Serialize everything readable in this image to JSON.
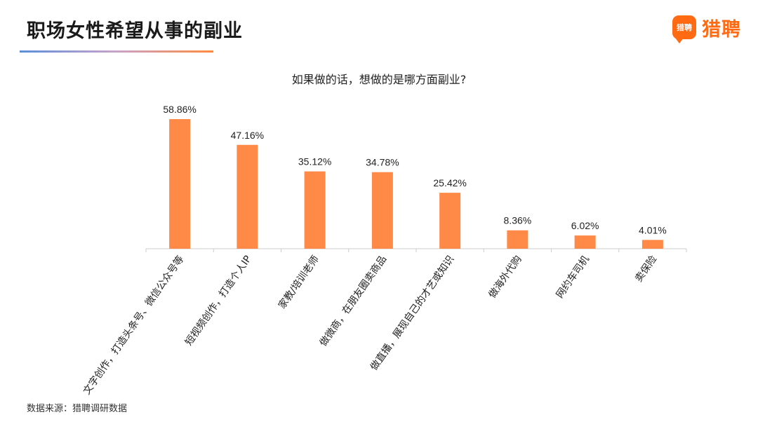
{
  "header": {
    "title": "职场女性希望从事的副业"
  },
  "logo": {
    "icon_text": "猎聘",
    "text": "猎聘",
    "color": "#ff6a13"
  },
  "footer": {
    "source": "数据来源：猎聘调研数据"
  },
  "colors": {
    "bar": "#ff8a47",
    "axis": "#cccccc"
  },
  "chart_data": {
    "type": "bar",
    "title": "如果做的话，想做的是哪方面副业?",
    "categories": [
      "文字创作，打造头条号、微信公众号等",
      "短视频创作，打造个人IP",
      "家教/培训老师",
      "做微商，在朋友圈卖商品",
      "做直播，展现自己的才艺或知识",
      "做海外代购",
      "网约车司机",
      "卖保险"
    ],
    "values": [
      58.86,
      47.16,
      35.12,
      34.78,
      25.42,
      8.36,
      6.02,
      4.01
    ],
    "value_labels": [
      "58.86%",
      "47.16%",
      "35.12%",
      "34.78%",
      "25.42%",
      "8.36%",
      "6.02%",
      "4.01%"
    ],
    "ylim": [
      0,
      60
    ],
    "grid": false,
    "legend": "none"
  }
}
